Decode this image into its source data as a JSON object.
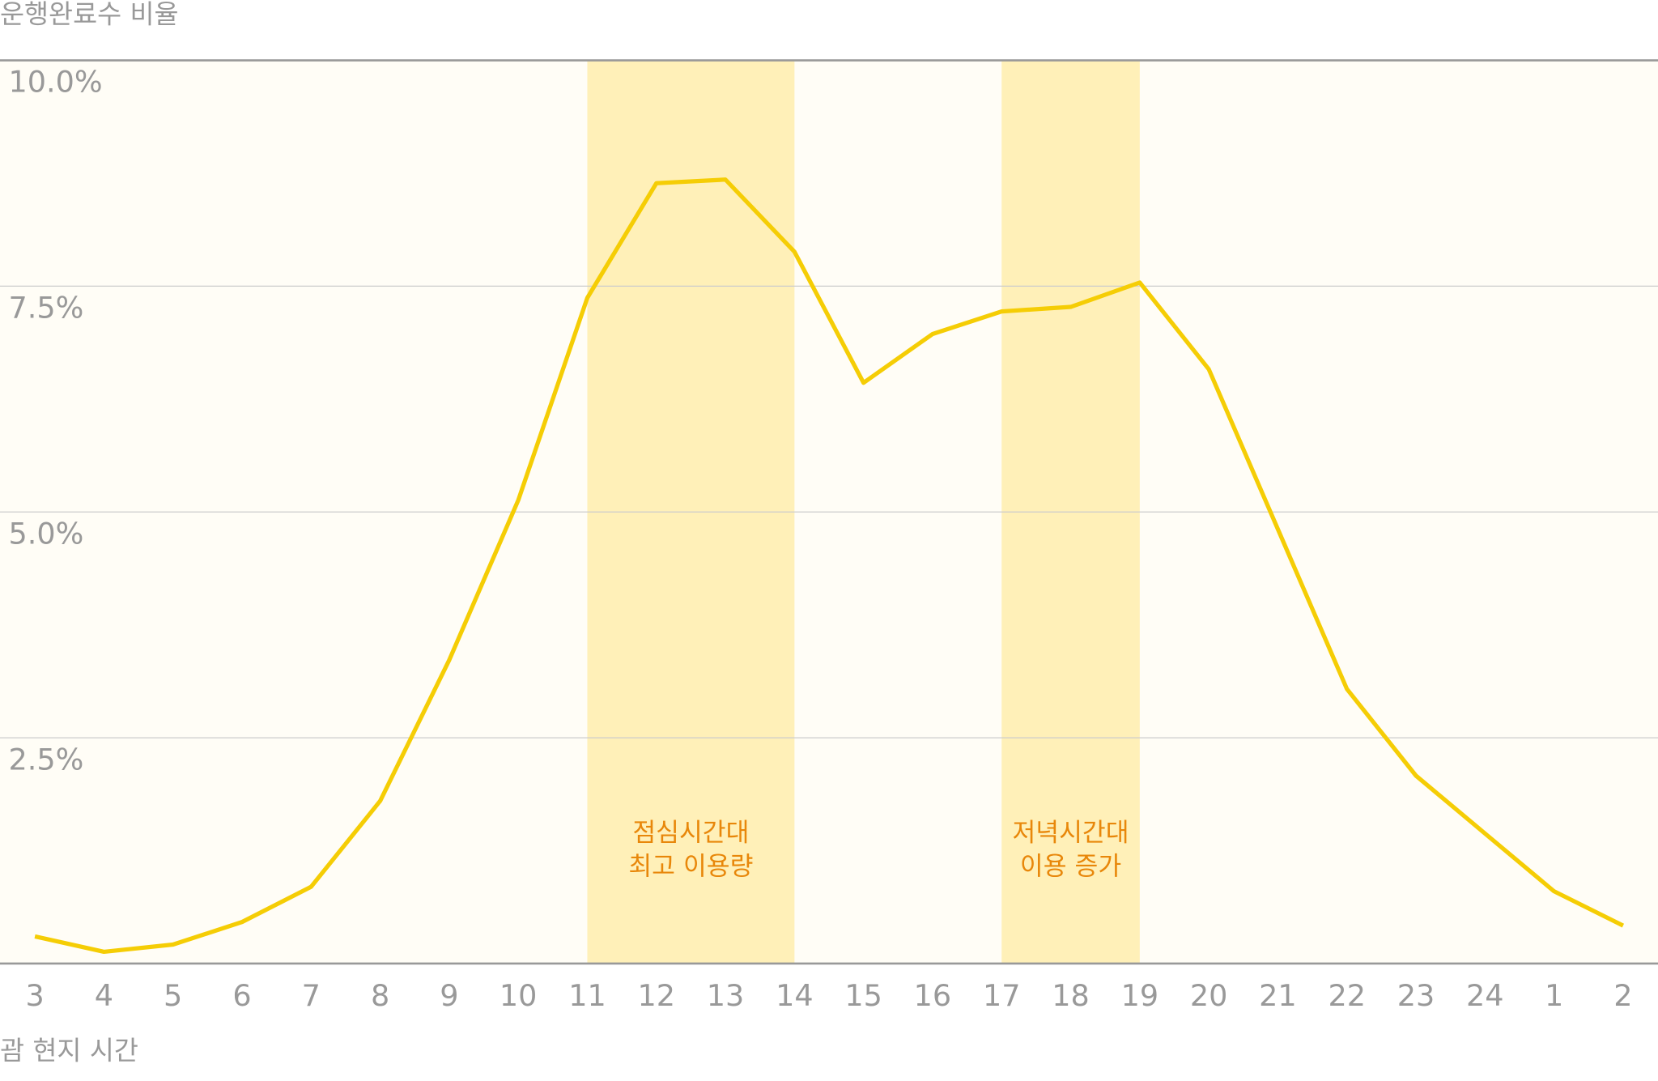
{
  "chart_data": {
    "type": "line",
    "ylabel": "운행완료수 비율",
    "xlabel": "괌 현지 시간",
    "categories": [
      "3",
      "4",
      "5",
      "6",
      "7",
      "8",
      "9",
      "10",
      "11",
      "12",
      "13",
      "14",
      "15",
      "16",
      "17",
      "18",
      "19",
      "20",
      "21",
      "22",
      "23",
      "24",
      "1",
      "2"
    ],
    "series": [
      {
        "color": "#f5cd05",
        "values": [
          0.3,
          0.13,
          0.21,
          0.46,
          0.85,
          1.8,
          3.36,
          5.13,
          7.37,
          8.64,
          8.68,
          7.88,
          6.43,
          6.97,
          7.22,
          7.27,
          7.54,
          6.58,
          4.81,
          3.04,
          2.08,
          1.44,
          0.8,
          0.42
        ]
      }
    ],
    "ylim": [
      0,
      10
    ],
    "yticks": [
      {
        "value": 2.5,
        "label": "2.5%"
      },
      {
        "value": 5,
        "label": "5.0%"
      },
      {
        "value": 7.5,
        "label": "7.5%"
      },
      {
        "value": 10,
        "label": "10.0%"
      }
    ],
    "grid": true,
    "highlights": [
      {
        "range": [
          "11",
          "14"
        ],
        "color": "#fff0b8",
        "text": [
          "점심시간대",
          "최고 이용량"
        ]
      },
      {
        "range": [
          "17",
          "19"
        ],
        "color": "#fff0b8",
        "text": [
          "저녁시간대",
          "이용 증가"
        ]
      }
    ]
  }
}
